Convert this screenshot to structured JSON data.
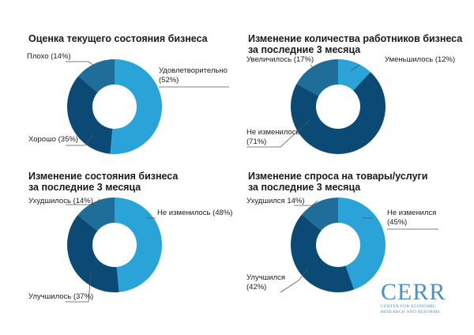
{
  "colors": {
    "light": "#2aa3d9",
    "mid": "#1e6e99",
    "dark": "#0a4a74",
    "leader": "#555555",
    "logo": "#4a90c0"
  },
  "chart_data": [
    {
      "type": "pie",
      "title": "Оценка текущего состояния бизнеса",
      "slices": [
        {
          "label": "Удовлетворительно (52%)",
          "value": 52,
          "color": "light"
        },
        {
          "label": "Хорошо (35%)",
          "value": 35,
          "color": "dark"
        },
        {
          "label": "Плохо (14%)",
          "value": 14,
          "color": "mid"
        }
      ]
    },
    {
      "type": "pie",
      "title": "Изменение количества работников бизнеса\nза последние 3 месяца",
      "slices": [
        {
          "label": "Уменьшилось (12%)",
          "value": 12,
          "color": "light"
        },
        {
          "label": "Не изменилось (71%)",
          "value": 71,
          "color": "dark"
        },
        {
          "label": "Увеличилось (17%)",
          "value": 17,
          "color": "mid"
        }
      ]
    },
    {
      "type": "pie",
      "title": "Изменение состояния бизнеса\nза последние 3 месяца",
      "slices": [
        {
          "label": "Не изменилось (48%)",
          "value": 48,
          "color": "light"
        },
        {
          "label": "Улучшилось (37%)",
          "value": 37,
          "color": "dark"
        },
        {
          "label": "Ухудшилось (14%)",
          "value": 14,
          "color": "mid"
        }
      ]
    },
    {
      "type": "pie",
      "title": "Изменение спроса на товары/услуги\nза последние 3 месяца",
      "slices": [
        {
          "label": "Не изменился (45%)",
          "value": 45,
          "color": "light"
        },
        {
          "label": "Улучшился (42%)",
          "value": 42,
          "color": "dark"
        },
        {
          "label": "Ухудшился 14%)",
          "value": 14,
          "color": "mid"
        }
      ]
    }
  ],
  "labels": {
    "c1": {
      "bad": "Плохо (14%)",
      "ok": "Удовлетворительно\n(52%)",
      "good": "Хорошо (35%)"
    },
    "c2": {
      "up": "Увеличилось (17%)",
      "down": "Уменьшилось (12%)",
      "same": "Не изменилось\n(71%)"
    },
    "c3": {
      "worse": "Ухудшилось (14%)",
      "same": "Не изменилось (48%)",
      "better": "Улучшилось (37%)"
    },
    "c4": {
      "worse": "Ухудшился 14%)",
      "same": "Не изменился\n(45%)",
      "better": "Улучшился\n(42%)"
    }
  },
  "logo": {
    "word": "CERR",
    "subtitle": "CENTER FOR ECONOMIC\nRESEARCH AND REFORMS"
  }
}
